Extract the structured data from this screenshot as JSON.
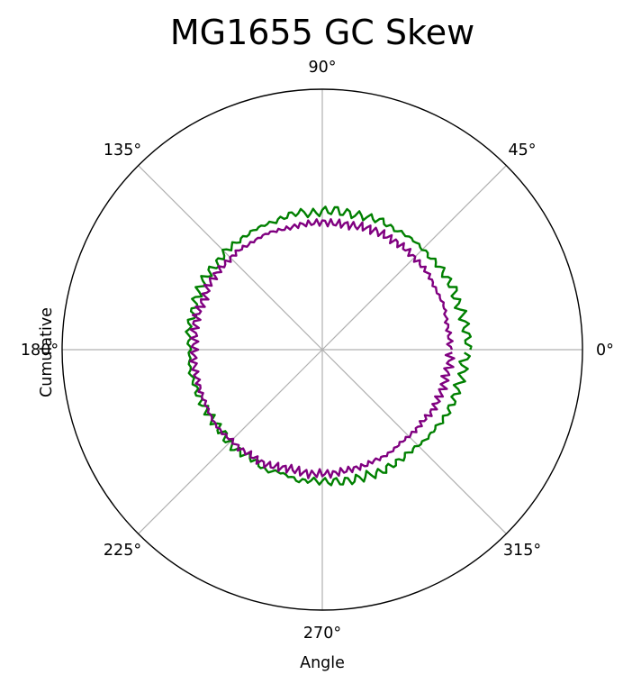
{
  "chart_data": {
    "type": "line",
    "projection": "polar",
    "title": "MG1655 GC Skew",
    "xlabel": "Angle",
    "ylabel": "Cumulative",
    "theta_unit": "degrees",
    "theta_ticks": [
      "0°",
      "45°",
      "90°",
      "135°",
      "180°",
      "225°",
      "270°",
      "315°"
    ],
    "r_tick_labels": "hidden",
    "grid": true,
    "series": [
      {
        "color": "#008000",
        "theta_deg": [
          0,
          5,
          10,
          15,
          20,
          25,
          30,
          35,
          40,
          45,
          50,
          55,
          60,
          65,
          70,
          75,
          80,
          85,
          90,
          95,
          100,
          105,
          110,
          115,
          120,
          125,
          130,
          135,
          140,
          145,
          150,
          155,
          160,
          165,
          170,
          175,
          180,
          185,
          190,
          195,
          200,
          205,
          210,
          215,
          220,
          225,
          230,
          235,
          240,
          245,
          250,
          255,
          260,
          265,
          270,
          275,
          280,
          285,
          290,
          295,
          300,
          305,
          310,
          315,
          320,
          325,
          330,
          335,
          340,
          345,
          350,
          355
        ],
        "r": [
          0.562,
          0.56,
          0.556,
          0.555,
          0.548,
          0.557,
          0.551,
          0.553,
          0.546,
          0.546,
          0.547,
          0.544,
          0.538,
          0.545,
          0.539,
          0.534,
          0.533,
          0.538,
          0.531,
          0.524,
          0.536,
          0.531,
          0.524,
          0.528,
          0.529,
          0.526,
          0.528,
          0.53,
          0.521,
          0.526,
          0.528,
          0.524,
          0.521,
          0.513,
          0.522,
          0.515,
          0.509,
          0.512,
          0.515,
          0.508,
          0.508,
          0.505,
          0.5,
          0.5,
          0.498,
          0.507,
          0.508,
          0.497,
          0.501,
          0.513,
          0.498,
          0.502,
          0.512,
          0.503,
          0.506,
          0.508,
          0.513,
          0.514,
          0.513,
          0.521,
          0.518,
          0.519,
          0.516,
          0.52,
          0.528,
          0.528,
          0.537,
          0.54,
          0.541,
          0.54,
          0.549,
          0.545
        ]
      },
      {
        "color": "#800080",
        "theta_deg": [
          0,
          5,
          10,
          15,
          20,
          25,
          30,
          35,
          40,
          45,
          50,
          55,
          60,
          65,
          70,
          75,
          80,
          85,
          90,
          95,
          100,
          105,
          110,
          115,
          120,
          125,
          130,
          135,
          140,
          145,
          150,
          155,
          160,
          165,
          170,
          175,
          180,
          185,
          190,
          195,
          200,
          205,
          210,
          215,
          220,
          225,
          230,
          235,
          240,
          245,
          250,
          255,
          260,
          265,
          270,
          275,
          280,
          285,
          290,
          295,
          300,
          305,
          310,
          315,
          320,
          325,
          330,
          335,
          340,
          345,
          350,
          355
        ],
        "r": [
          0.491,
          0.491,
          0.489,
          0.491,
          0.497,
          0.494,
          0.494,
          0.5,
          0.5,
          0.499,
          0.502,
          0.501,
          0.5,
          0.5,
          0.498,
          0.491,
          0.489,
          0.487,
          0.49,
          0.487,
          0.487,
          0.484,
          0.488,
          0.494,
          0.493,
          0.493,
          0.499,
          0.497,
          0.499,
          0.501,
          0.503,
          0.495,
          0.496,
          0.499,
          0.499,
          0.491,
          0.493,
          0.495,
          0.496,
          0.493,
          0.495,
          0.494,
          0.498,
          0.501,
          0.499,
          0.492,
          0.495,
          0.489,
          0.492,
          0.49,
          0.48,
          0.473,
          0.477,
          0.479,
          0.475,
          0.477,
          0.473,
          0.472,
          0.474,
          0.47,
          0.474,
          0.472,
          0.467,
          0.47,
          0.474,
          0.474,
          0.483,
          0.484,
          0.485,
          0.486,
          0.487,
          0.493
        ]
      }
    ]
  }
}
